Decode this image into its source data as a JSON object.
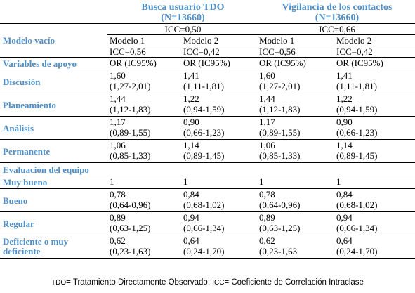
{
  "header": {
    "group1_line1": "Busca usuario TDO",
    "group1_line2": "(N=13660)",
    "group2_line1": "Vigilancia de los contactos",
    "group2_line2": "(N=13660)"
  },
  "empty_model": {
    "label": "Modelo vacío",
    "icc_group1": "ICC=0,50",
    "icc_group2": "ICC=0,66",
    "models": [
      "Modelo 1",
      "Modelo 2",
      "Modelo 1",
      "Modelo 2"
    ],
    "model_icc": [
      "ICC=0,56",
      "ICC=0,42",
      "ICC=0,56",
      "ICC=0,42"
    ]
  },
  "support_header": {
    "label": "Variables de apoyo",
    "cols": [
      "OR (IC95%)",
      "OR (IC95%)",
      "OR (IC95%)",
      "OR (IC95%)"
    ]
  },
  "support_rows": [
    {
      "label": "Discusión",
      "values": [
        [
          "1,60",
          "(1,27-2,01)"
        ],
        [
          "1,41",
          "(1,11-1,81)"
        ],
        [
          "1,60",
          "(1,27-2,01)"
        ],
        [
          "1,41",
          "(1,11-1,81)"
        ]
      ]
    },
    {
      "label": "Planeamiento",
      "values": [
        [
          "1,44",
          "(1,12-1,83)"
        ],
        [
          "1,22",
          "(0,94-1,59)"
        ],
        [
          "1,44",
          "(1,12-1,83)"
        ],
        [
          "1,22",
          "(0,94-1,59)"
        ]
      ]
    },
    {
      "label": "Análisis",
      "values": [
        [
          "1,17",
          "(0,89-1,55)"
        ],
        [
          "0,90",
          "(0,66-1,23)"
        ],
        [
          "1,17",
          "(0,89-1,55)"
        ],
        [
          "0,90",
          "(0,66-1,23)"
        ]
      ]
    },
    {
      "label": "Permanente",
      "values": [
        [
          "1,06",
          "(0,85-1,33)"
        ],
        [
          "1,14",
          "(0,89-1,45)"
        ],
        [
          "1,06",
          "(0,85-1,33)"
        ],
        [
          "1,14",
          "(0,89-1,45)"
        ]
      ]
    }
  ],
  "team_section": {
    "label": "Evaluación del equipo",
    "reference_row": {
      "label": "Muy bueno",
      "values": [
        "1",
        "1",
        "1",
        "1"
      ]
    },
    "rows": [
      {
        "label": "Bueno",
        "values": [
          [
            "0,78",
            "(0,64-0,96)"
          ],
          [
            "0,84",
            "(0,68-1,02)"
          ],
          [
            "0,78",
            "(0,64-0,96)"
          ],
          [
            "0,84",
            "(0,68-1,02)"
          ]
        ]
      },
      {
        "label": "Regular",
        "values": [
          [
            "0,89",
            "(0,63-1,25)"
          ],
          [
            "0,94",
            "(0,66-1,34)"
          ],
          [
            "0,89",
            "(0,63-1,25)"
          ],
          [
            "0,94",
            "(0,66-1,34)"
          ]
        ]
      },
      {
        "label_line1": "Deficiente o muy",
        "label_line2": "deficiente",
        "values": [
          [
            "0,62",
            "(0,23-1,63)"
          ],
          [
            "0,64",
            "(0,24-1,70)"
          ],
          [
            "0,62",
            "(0,23-1,63"
          ],
          [
            "0,64",
            "(0,24-1,70)"
          ]
        ]
      }
    ]
  },
  "footnote": {
    "abbr1": "TDO",
    "text1": "= Tratamiento Directamente Observado; ",
    "abbr2": "ICC",
    "text2": "= Coeficiente de Correlación Intraclase"
  },
  "colors": {
    "label_blue": "#4f8fc6",
    "text": "#000000",
    "rule": "#000000"
  }
}
